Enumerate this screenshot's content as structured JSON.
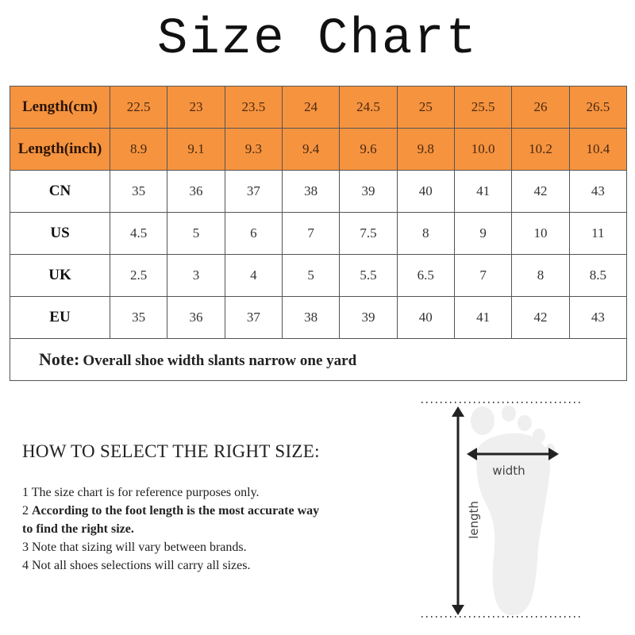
{
  "title": "Size Chart",
  "table": {
    "rows": [
      {
        "label": "Length(cm)",
        "highlight": true,
        "values": [
          "22.5",
          "23",
          "23.5",
          "24",
          "24.5",
          "25",
          "25.5",
          "26",
          "26.5"
        ]
      },
      {
        "label": "Length(inch)",
        "highlight": true,
        "values": [
          "8.9",
          "9.1",
          "9.3",
          "9.4",
          "9.6",
          "9.8",
          "10.0",
          "10.2",
          "10.4"
        ]
      },
      {
        "label": "CN",
        "highlight": false,
        "values": [
          "35",
          "36",
          "37",
          "38",
          "39",
          "40",
          "41",
          "42",
          "43"
        ]
      },
      {
        "label": "US",
        "highlight": false,
        "values": [
          "4.5",
          "5",
          "6",
          "7",
          "7.5",
          "8",
          "9",
          "10",
          "11"
        ]
      },
      {
        "label": "UK",
        "highlight": false,
        "values": [
          "2.5",
          "3",
          "4",
          "5",
          "5.5",
          "6.5",
          "7",
          "8",
          "8.5"
        ]
      },
      {
        "label": "EU",
        "highlight": false,
        "values": [
          "35",
          "36",
          "37",
          "38",
          "39",
          "40",
          "41",
          "42",
          "43"
        ]
      }
    ],
    "note_label": "Note:",
    "note_text": "Overall shoe width slants narrow one yard"
  },
  "how_to": {
    "title": "HOW TO SELECT THE RIGHT SIZE:",
    "tips": [
      {
        "num": "1",
        "text": "The size chart is for reference purposes only.",
        "bold": false
      },
      {
        "num": "2",
        "text": "According to the foot length is the most accurate way to find the right size.",
        "bold": true
      },
      {
        "num": "3",
        "text": "Note that sizing will vary between brands.",
        "bold": false
      },
      {
        "num": "4",
        "text": "Not all shoes selections will carry all sizes.",
        "bold": false
      }
    ]
  },
  "diagram": {
    "width_label": "width",
    "length_label": "length"
  },
  "colors": {
    "header_orange": "#f6933f",
    "foot_gray": "#efefef",
    "arrow": "#222222"
  }
}
